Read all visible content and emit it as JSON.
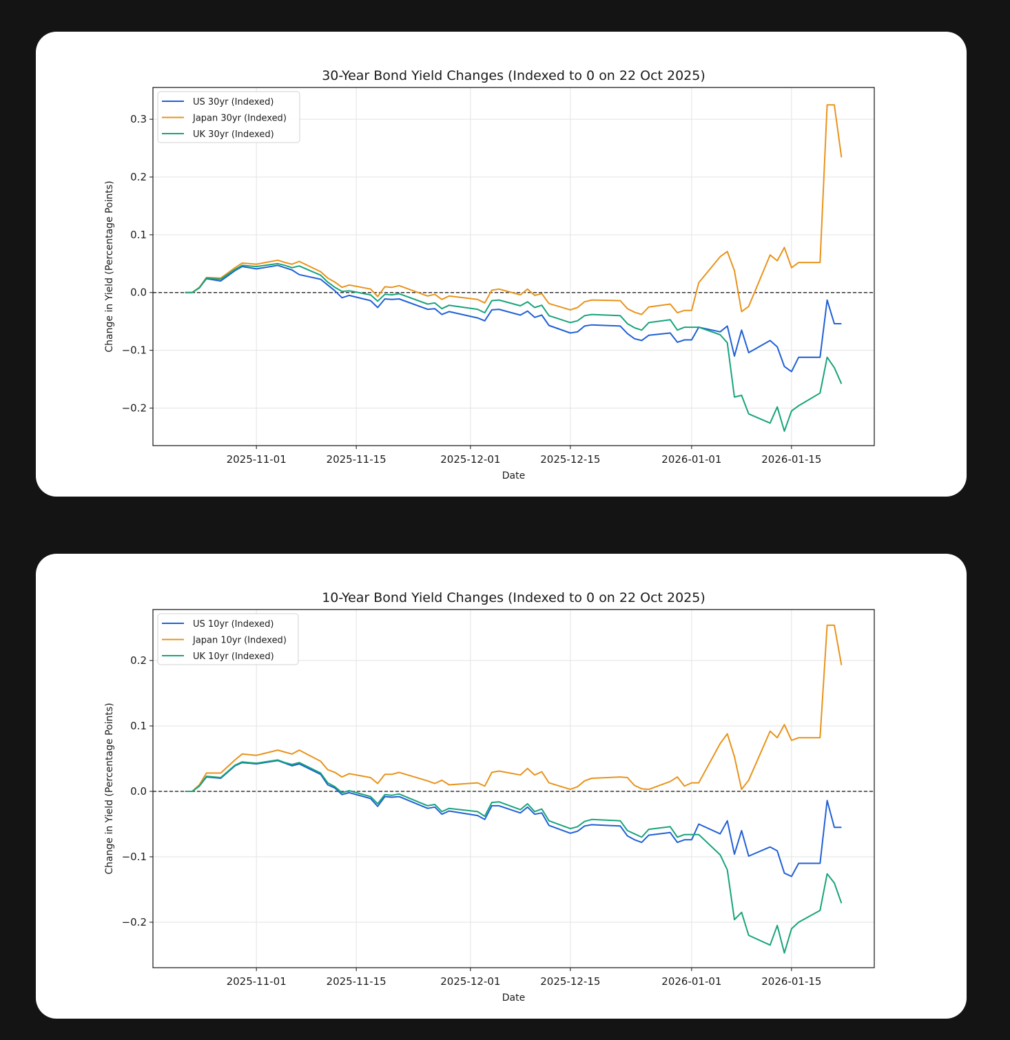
{
  "chart_data": [
    {
      "type": "line",
      "title": "30-Year Bond Yield Changes (Indexed to 0 on 22 Oct 2025)",
      "xlabel": "Date",
      "ylabel": "Change in Yield (Percentage Points)",
      "ylim": [
        -0.265,
        0.355
      ],
      "yticks": [
        "0.3",
        "0.2",
        "0.1",
        "0.0",
        "−0.1",
        "−0.2"
      ],
      "ytick_values": [
        0.3,
        0.2,
        0.1,
        0.0,
        -0.1,
        -0.2
      ],
      "xticks": [
        "2025-11-01",
        "2025-11-15",
        "2025-12-01",
        "2025-12-15",
        "2026-01-01",
        "2026-01-15"
      ],
      "xtick_days": [
        10,
        24,
        40,
        54,
        71,
        85
      ],
      "xlim_days": [
        -4.5,
        96.6
      ],
      "grid": true,
      "legend_position": "top-left",
      "reference_line": 0.0,
      "x_days": [
        0,
        1,
        2,
        3,
        5,
        7,
        8,
        9,
        10,
        13,
        14,
        15,
        16,
        19,
        20,
        21,
        22,
        23,
        26,
        27,
        28,
        29,
        30,
        34,
        35,
        36,
        37,
        41,
        42,
        43,
        44,
        47,
        48,
        49,
        50,
        51,
        54,
        55,
        56,
        57,
        61,
        62,
        63,
        64,
        65,
        68,
        69,
        70,
        71,
        72,
        75,
        76,
        77,
        78,
        79,
        82,
        83,
        84,
        85,
        86,
        89,
        90,
        91,
        92
      ],
      "series": [
        {
          "name": "US 30yr (Indexed)",
          "color": "#1f5fd6",
          "values": [
            0,
            0,
            0.008,
            0.024,
            0.02,
            0.038,
            0.045,
            0.043,
            0.041,
            0.047,
            0.043,
            0.039,
            0.031,
            0.023,
            0.013,
            0.003,
            -0.009,
            -0.005,
            -0.014,
            -0.026,
            -0.011,
            -0.012,
            -0.011,
            -0.029,
            -0.028,
            -0.038,
            -0.033,
            -0.044,
            -0.049,
            -0.03,
            -0.029,
            -0.039,
            -0.032,
            -0.043,
            -0.039,
            -0.057,
            -0.07,
            -0.068,
            -0.058,
            -0.056,
            -0.058,
            -0.071,
            -0.08,
            -0.083,
            -0.074,
            -0.07,
            -0.086,
            -0.082,
            -0.082,
            -0.06,
            -0.068,
            -0.058,
            -0.11,
            -0.065,
            -0.104,
            -0.083,
            -0.094,
            -0.128,
            -0.137,
            -0.112,
            -0.112,
            -0.013,
            -0.054,
            -0.054
          ]
        },
        {
          "name": "Japan 30yr (Indexed)",
          "color": "#e8931a",
          "values": [
            0,
            0,
            0.009,
            0.026,
            0.025,
            0.043,
            0.051,
            0.05,
            0.049,
            0.056,
            0.052,
            0.049,
            0.054,
            0.036,
            0.025,
            0.018,
            0.009,
            0.013,
            0.006,
            -0.007,
            0.01,
            0.009,
            0.012,
            -0.006,
            -0.003,
            -0.012,
            -0.006,
            -0.012,
            -0.018,
            0.004,
            0.006,
            -0.004,
            0.006,
            -0.005,
            -0.002,
            -0.019,
            -0.03,
            -0.026,
            -0.016,
            -0.013,
            -0.014,
            -0.028,
            -0.034,
            -0.038,
            -0.025,
            -0.02,
            -0.035,
            -0.031,
            -0.031,
            0.017,
            0.062,
            0.071,
            0.038,
            -0.033,
            -0.024,
            0.065,
            0.055,
            0.078,
            0.043,
            0.052,
            0.052,
            0.325,
            0.325,
            0.234
          ]
        },
        {
          "name": "UK 30yr (Indexed)",
          "color": "#17a37a",
          "values": [
            0,
            0,
            0.008,
            0.025,
            0.023,
            0.04,
            0.047,
            0.046,
            0.045,
            0.05,
            0.047,
            0.043,
            0.046,
            0.03,
            0.018,
            0.009,
            0.002,
            0.003,
            -0.004,
            -0.015,
            -0.003,
            -0.004,
            -0.002,
            -0.02,
            -0.018,
            -0.028,
            -0.022,
            -0.029,
            -0.035,
            -0.014,
            -0.013,
            -0.023,
            -0.016,
            -0.026,
            -0.022,
            -0.04,
            -0.052,
            -0.049,
            -0.04,
            -0.038,
            -0.04,
            -0.054,
            -0.061,
            -0.065,
            -0.052,
            -0.047,
            -0.065,
            -0.06,
            -0.06,
            -0.06,
            -0.073,
            -0.087,
            -0.181,
            -0.178,
            -0.21,
            -0.226,
            -0.198,
            -0.24,
            -0.205,
            -0.196,
            -0.174,
            -0.112,
            -0.13,
            -0.158
          ]
        }
      ]
    },
    {
      "type": "line",
      "title": "10-Year Bond Yield Changes (Indexed to 0 on 22 Oct 2025)",
      "xlabel": "Date",
      "ylabel": "Change in Yield (Percentage Points)",
      "ylim": [
        -0.2695,
        0.2779
      ],
      "yticks": [
        "0.2",
        "0.1",
        "0.0",
        "−0.1",
        "−0.2"
      ],
      "ytick_values": [
        0.2,
        0.1,
        0.0,
        -0.1,
        -0.2
      ],
      "xticks": [
        "2025-11-01",
        "2025-11-15",
        "2025-12-01",
        "2025-12-15",
        "2026-01-01",
        "2026-01-15"
      ],
      "xtick_days": [
        10,
        24,
        40,
        54,
        71,
        85
      ],
      "xlim_days": [
        -4.5,
        96.6
      ],
      "grid": true,
      "legend_position": "top-left",
      "reference_line": 0.0,
      "x_days": [
        0,
        1,
        2,
        3,
        5,
        7,
        8,
        9,
        10,
        13,
        14,
        15,
        16,
        19,
        20,
        21,
        22,
        23,
        26,
        27,
        28,
        29,
        30,
        34,
        35,
        36,
        37,
        41,
        42,
        43,
        44,
        47,
        48,
        49,
        50,
        51,
        54,
        55,
        56,
        57,
        61,
        62,
        63,
        64,
        65,
        68,
        69,
        70,
        71,
        72,
        75,
        76,
        77,
        78,
        79,
        82,
        83,
        84,
        85,
        86,
        89,
        90,
        91,
        92
      ],
      "series": [
        {
          "name": "US 10yr (Indexed)",
          "color": "#1f5fd6",
          "values": [
            0,
            0,
            0.008,
            0.022,
            0.02,
            0.039,
            0.044,
            0.043,
            0.042,
            0.047,
            0.043,
            0.039,
            0.042,
            0.026,
            0.01,
            0.005,
            -0.005,
            -0.002,
            -0.011,
            -0.023,
            -0.008,
            -0.009,
            -0.008,
            -0.026,
            -0.024,
            -0.035,
            -0.03,
            -0.037,
            -0.043,
            -0.022,
            -0.022,
            -0.033,
            -0.024,
            -0.035,
            -0.033,
            -0.052,
            -0.064,
            -0.061,
            -0.053,
            -0.051,
            -0.053,
            -0.068,
            -0.074,
            -0.078,
            -0.067,
            -0.063,
            -0.078,
            -0.074,
            -0.074,
            -0.05,
            -0.065,
            -0.045,
            -0.096,
            -0.06,
            -0.099,
            -0.085,
            -0.091,
            -0.125,
            -0.13,
            -0.11,
            -0.11,
            -0.014,
            -0.055,
            -0.055
          ]
        },
        {
          "name": "Japan 10yr (Indexed)",
          "color": "#e8931a",
          "values": [
            0,
            0,
            0.01,
            0.028,
            0.028,
            0.048,
            0.057,
            0.056,
            0.055,
            0.063,
            0.06,
            0.057,
            0.063,
            0.046,
            0.033,
            0.029,
            0.022,
            0.027,
            0.021,
            0.012,
            0.026,
            0.026,
            0.029,
            0.016,
            0.012,
            0.017,
            0.01,
            0.013,
            0.008,
            0.029,
            0.031,
            0.025,
            0.035,
            0.025,
            0.03,
            0.013,
            0.003,
            0.007,
            0.016,
            0.02,
            0.022,
            0.021,
            0.009,
            0.004,
            0.003,
            0.015,
            0.022,
            0.008,
            0.013,
            0.013,
            0.073,
            0.088,
            0.053,
            0.003,
            0.017,
            0.092,
            0.082,
            0.102,
            0.078,
            0.082,
            0.082,
            0.254,
            0.254,
            0.193
          ]
        },
        {
          "name": "UK 10yr (Indexed)",
          "color": "#17a37a",
          "values": [
            0,
            0,
            0.008,
            0.023,
            0.021,
            0.04,
            0.045,
            0.044,
            0.043,
            0.048,
            0.044,
            0.041,
            0.044,
            0.028,
            0.013,
            0.007,
            -0.002,
            0.001,
            -0.008,
            -0.019,
            -0.005,
            -0.006,
            -0.004,
            -0.022,
            -0.02,
            -0.031,
            -0.026,
            -0.031,
            -0.038,
            -0.017,
            -0.016,
            -0.028,
            -0.019,
            -0.031,
            -0.027,
            -0.045,
            -0.057,
            -0.054,
            -0.046,
            -0.043,
            -0.045,
            -0.06,
            -0.065,
            -0.07,
            -0.058,
            -0.054,
            -0.07,
            -0.066,
            -0.066,
            -0.066,
            -0.097,
            -0.12,
            -0.196,
            -0.185,
            -0.22,
            -0.235,
            -0.205,
            -0.247,
            -0.21,
            -0.2,
            -0.182,
            -0.126,
            -0.14,
            -0.171
          ]
        }
      ]
    }
  ]
}
